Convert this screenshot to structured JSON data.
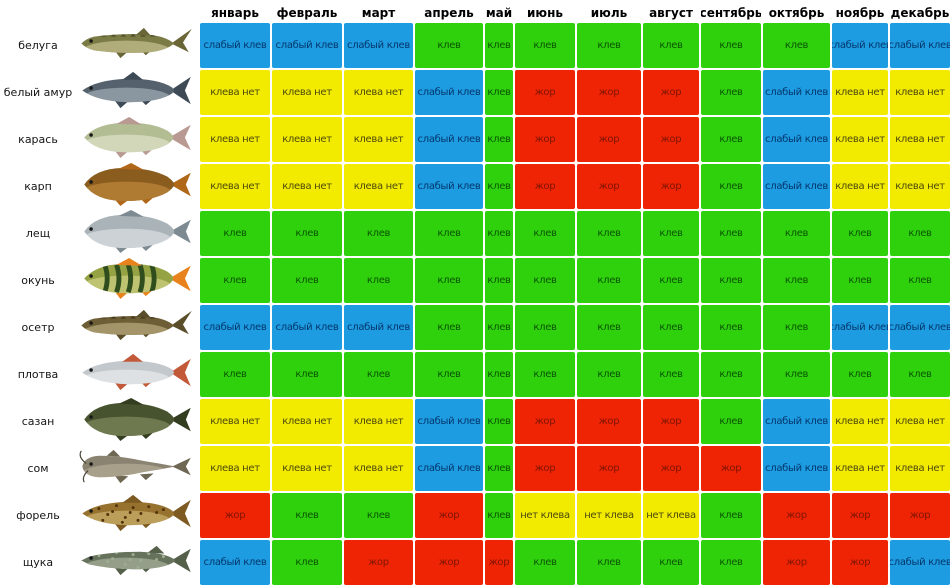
{
  "chart_data": {
    "type": "heatmap",
    "x_labels": [
      "январь",
      "февраль",
      "март",
      "апрель",
      "май",
      "июнь",
      "июль",
      "август",
      "сентябрь",
      "октябрь",
      "ноябрь",
      "декабрь"
    ],
    "legend": {
      "клев": "#2fd10d",
      "слабый клев": "#1d9ce2",
      "клева нет": "#f2eb00",
      "нет клева": "#f2eb00",
      "жор": "#ee2404"
    },
    "text_colors": {
      "клев": "#0b5500",
      "слабый клев": "#05366b",
      "клева нет": "#4c480a",
      "нет клева": "#4c480a",
      "жор": "#7e1500"
    },
    "rows": [
      {
        "fish": "белуга",
        "icon": "beluga-fish-icon",
        "art": {
          "shape": "sturgeon",
          "body": "#7b7b46",
          "belly": "#d6cf9e",
          "fin": "#6a6638",
          "scutes": "#4f512a"
        },
        "values": [
          "слабый клев",
          "слабый клев",
          "слабый клев",
          "клев",
          "клев",
          "клев",
          "клев",
          "клев",
          "клев",
          "клев",
          "слабый клев",
          "слабый клев"
        ]
      },
      {
        "fish": "белый амур",
        "icon": "grass-carp-fish-icon",
        "art": {
          "shape": "torpedo",
          "body": "#55626e",
          "belly": "#aebac2",
          "fin": "#3e4a56"
        },
        "values": [
          "клева нет",
          "клева нет",
          "клева нет",
          "слабый клев",
          "клев",
          "жор",
          "жор",
          "жор",
          "клев",
          "слабый клев",
          "клева нет",
          "клева нет"
        ]
      },
      {
        "fish": "карась",
        "icon": "crucian-carp-fish-icon",
        "art": {
          "shape": "oval",
          "body": "#b3bd94",
          "belly": "#e6e8d4",
          "fin": "#b99a93"
        },
        "values": [
          "клева нет",
          "клева нет",
          "клева нет",
          "слабый клев",
          "клев",
          "жор",
          "жор",
          "жор",
          "клев",
          "слабый клев",
          "клева нет",
          "клева нет"
        ]
      },
      {
        "fish": "карп",
        "icon": "carp-fish-icon",
        "art": {
          "shape": "deep",
          "body": "#8a5c1e",
          "belly": "#c89040",
          "fin": "#b06818"
        },
        "values": [
          "клева нет",
          "клева нет",
          "клева нет",
          "слабый клев",
          "клев",
          "жор",
          "жор",
          "жор",
          "клев",
          "слабый клев",
          "клева нет",
          "клева нет"
        ]
      },
      {
        "fish": "лещ",
        "icon": "bream-fish-icon",
        "art": {
          "shape": "deep",
          "body": "#aab3b8",
          "belly": "#e2e6e8",
          "fin": "#7d8a91"
        },
        "values": [
          "клев",
          "клев",
          "клев",
          "клев",
          "клев",
          "клев",
          "клев",
          "клев",
          "клев",
          "клев",
          "клев",
          "клев"
        ]
      },
      {
        "fish": "окунь",
        "icon": "perch-fish-icon",
        "art": {
          "shape": "oval",
          "body": "#96a344",
          "belly": "#d8d890",
          "fin": "#e8821c",
          "stripes": "#2f4d1d"
        },
        "values": [
          "клев",
          "клев",
          "клев",
          "клев",
          "клев",
          "клев",
          "клев",
          "клев",
          "клев",
          "клев",
          "клев",
          "клев"
        ]
      },
      {
        "fish": "осетр",
        "icon": "sturgeon-fish-icon",
        "art": {
          "shape": "sturgeon",
          "body": "#6d5e35",
          "belly": "#c9b98c",
          "fin": "#5a4e2a",
          "scutes": "#453c1e"
        },
        "values": [
          "слабый клев",
          "слабый клев",
          "слабый клев",
          "клев",
          "клев",
          "клев",
          "клев",
          "клев",
          "клев",
          "клев",
          "слабый клев",
          "слабый клев"
        ]
      },
      {
        "fish": "плотва",
        "icon": "roach-fish-icon",
        "art": {
          "shape": "torpedo",
          "body": "#c2c8cc",
          "belly": "#eef1f2",
          "fin": "#c25a3a"
        },
        "values": [
          "клев",
          "клев",
          "клев",
          "клев",
          "клев",
          "клев",
          "клев",
          "клев",
          "клев",
          "клев",
          "клев",
          "клев"
        ]
      },
      {
        "fish": "сазан",
        "icon": "wild-carp-fish-icon",
        "art": {
          "shape": "deep",
          "body": "#47522e",
          "belly": "#8a9468",
          "fin": "#333d20"
        },
        "values": [
          "клева нет",
          "клева нет",
          "клева нет",
          "слабый клев",
          "клев",
          "жор",
          "жор",
          "жор",
          "клев",
          "слабый клев",
          "клева нет",
          "клева нет"
        ]
      },
      {
        "fish": "сом",
        "icon": "catfish-fish-icon",
        "art": {
          "shape": "catfish",
          "body": "#8b8371",
          "belly": "#bdb49c",
          "fin": "#6e6754",
          "whiskers": "#4a4436"
        },
        "values": [
          "клева нет",
          "клева нет",
          "клева нет",
          "слабый клев",
          "клев",
          "жор",
          "жор",
          "жор",
          "жор",
          "слабый клев",
          "клева нет",
          "клева нет"
        ]
      },
      {
        "fish": "форель",
        "icon": "trout-fish-icon",
        "art": {
          "shape": "torpedo",
          "body": "#97722f",
          "belly": "#d6bc7a",
          "fin": "#7c5a22",
          "spots": "#4f3208"
        },
        "values": [
          "жор",
          "клев",
          "клев",
          "жор",
          "клев",
          "нет клева",
          "нет клева",
          "нет клева",
          "клев",
          "жор",
          "жор",
          "жор"
        ]
      },
      {
        "fish": "щука",
        "icon": "pike-fish-icon",
        "art": {
          "shape": "pike",
          "body": "#66725c",
          "belly": "#b2bca6",
          "fin": "#55604b",
          "spots": "#9fae92"
        },
        "values": [
          "слабый клев",
          "клев",
          "жор",
          "жор",
          "жор",
          "клев",
          "клев",
          "клев",
          "клев",
          "жор",
          "жор",
          "слабый клев"
        ]
      }
    ]
  }
}
